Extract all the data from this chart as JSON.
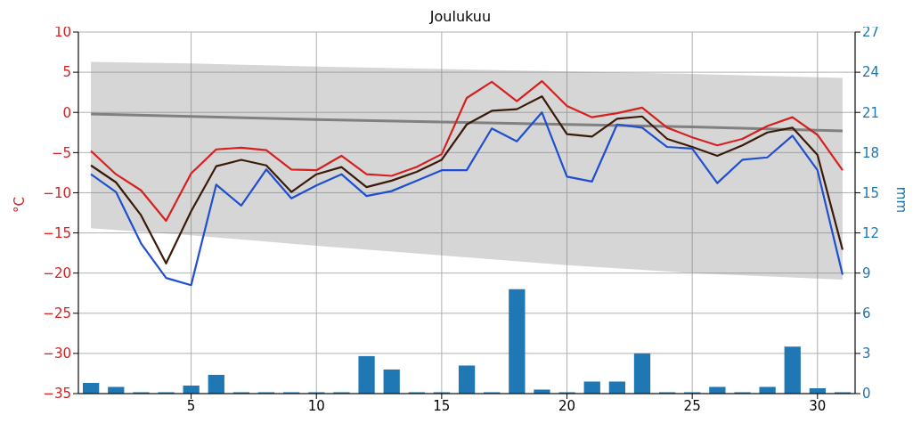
{
  "chart_data": {
    "type": "line",
    "title": "Joulukuu",
    "ylabel": "°C",
    "y2label": "mm",
    "x": [
      1,
      2,
      3,
      4,
      5,
      6,
      7,
      8,
      9,
      10,
      11,
      12,
      13,
      14,
      15,
      16,
      17,
      18,
      19,
      20,
      21,
      22,
      23,
      24,
      25,
      26,
      27,
      28,
      29,
      30,
      31
    ],
    "xlim": [
      0.5,
      31.5
    ],
    "xticks": [
      5,
      10,
      15,
      20,
      25,
      30
    ],
    "ylim": [
      -35,
      10
    ],
    "yticks": [
      {
        "value": -35,
        "label": "−35"
      },
      {
        "value": -30,
        "label": "−30"
      },
      {
        "value": -25,
        "label": "−25"
      },
      {
        "value": -20,
        "label": "−20"
      },
      {
        "value": -15,
        "label": "−15"
      },
      {
        "value": -10,
        "label": "−10"
      },
      {
        "value": -5,
        "label": "−5"
      },
      0,
      5,
      10
    ],
    "y2lim": [
      0,
      27
    ],
    "y2ticks": [
      0,
      3,
      6,
      9,
      12,
      15,
      18,
      21,
      24,
      27
    ],
    "grid": true,
    "legend": false,
    "series": [
      {
        "type": "bar",
        "axis": "y2",
        "color": "#1f77b4",
        "values": [
          0.8,
          0.5,
          0.1,
          0.1,
          0.6,
          1.4,
          0.1,
          0.1,
          0.1,
          0.1,
          0.1,
          2.8,
          1.8,
          0.1,
          0.1,
          2.1,
          0.1,
          7.8,
          0.3,
          0.1,
          0.9,
          0.9,
          3.0,
          0.1,
          0.1,
          0.5,
          0.1,
          0.5,
          3.5,
          0.4,
          0.1
        ]
      },
      {
        "color": "#808080",
        "x": [
          1,
          5,
          10,
          15,
          20,
          25,
          31
        ],
        "values": [
          -0.2,
          -0.5,
          -0.9,
          -1.2,
          -1.5,
          -1.8,
          -2.3
        ],
        "lower": [
          -14.4,
          -15.3,
          -16.6,
          -17.8,
          -19.0,
          -20.0,
          -20.8
        ],
        "upper": [
          6.3,
          6.1,
          5.7,
          5.4,
          5.1,
          4.8,
          4.3
        ]
      },
      {
        "color": "#d62020",
        "values": [
          -4.8,
          -7.7,
          -9.7,
          -13.5,
          -7.6,
          -4.6,
          -4.4,
          -4.7,
          -7.1,
          -7.2,
          -5.4,
          -7.7,
          -7.9,
          -6.8,
          -5.2,
          1.8,
          3.8,
          1.4,
          3.9,
          0.8,
          -0.6,
          -0.1,
          0.6,
          -1.9,
          -3.1,
          -4.1,
          -3.3,
          -1.7,
          -0.6,
          -2.8,
          -7.2
        ]
      },
      {
        "color": "#3b1a0a",
        "values": [
          -6.6,
          -8.7,
          -12.8,
          -18.8,
          -12.3,
          -6.7,
          -5.9,
          -6.6,
          -9.9,
          -7.7,
          -6.8,
          -9.3,
          -8.5,
          -7.4,
          -5.9,
          -1.5,
          0.2,
          0.4,
          2.0,
          -2.7,
          -3.0,
          -0.8,
          -0.5,
          -3.3,
          -4.3,
          -5.4,
          -4.1,
          -2.5,
          -1.9,
          -5.3,
          -17.1
        ]
      },
      {
        "color": "#1f4fd0",
        "values": [
          -7.7,
          -9.9,
          -16.3,
          -20.6,
          -21.5,
          -9.0,
          -11.6,
          -7.1,
          -10.7,
          -9.1,
          -7.7,
          -10.4,
          -9.8,
          -8.5,
          -7.2,
          -7.2,
          -2.0,
          -3.6,
          0.0,
          -8.0,
          -8.6,
          -1.5,
          -1.9,
          -4.3,
          -4.5,
          -8.8,
          -5.9,
          -5.6,
          -2.9,
          -7.2,
          -20.2
        ]
      }
    ]
  }
}
